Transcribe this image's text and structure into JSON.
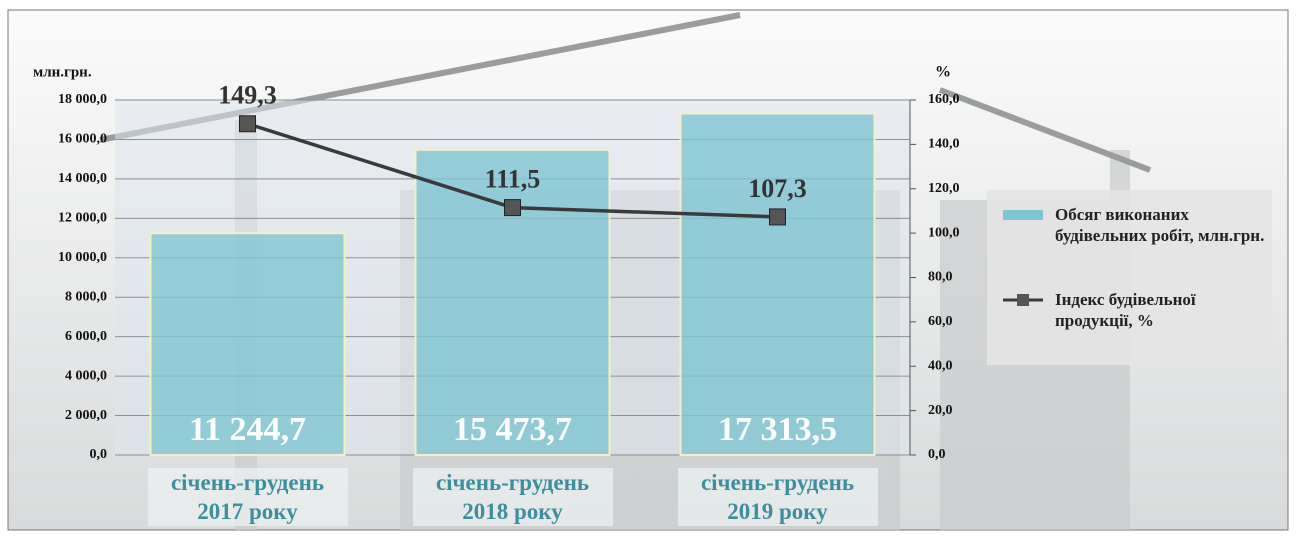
{
  "chart_data": {
    "type": "bar-line",
    "y_axis_label": "млн.грн.",
    "y2_axis_label": "%",
    "categories": [
      "січень-грудень\n2017 року",
      "січень-грудень\n2018 року",
      "січень-грудень\n2019 року"
    ],
    "series": [
      {
        "name": "Обсяг виконаних будівельних робіт, млн.грн.",
        "type": "bar",
        "color": "#7fc6d2",
        "values": [
          11244.7,
          15473.7,
          17313.5
        ],
        "value_labels": [
          "11 244,7",
          "15 473,7",
          "17 313,5"
        ]
      },
      {
        "name": "Індекс будівельної продукції, %",
        "type": "line",
        "axis": "y2",
        "color": "#3a3a3a",
        "values": [
          149.3,
          111.5,
          107.3
        ],
        "value_labels": [
          "149,3",
          "111,5",
          "107,3"
        ]
      }
    ],
    "ylim": [
      0,
      18000
    ],
    "yticks": [
      {
        "value": 0,
        "label": "0,0"
      },
      {
        "value": 2000,
        "label": "2 000,0"
      },
      {
        "value": 4000,
        "label": "4 000,0"
      },
      {
        "value": 6000,
        "label": "6 000,0"
      },
      {
        "value": 8000,
        "label": "8 000,0"
      },
      {
        "value": 10000,
        "label": "10 000,0"
      },
      {
        "value": 12000,
        "label": "12 000,0"
      },
      {
        "value": 14000,
        "label": "14 000,0"
      },
      {
        "value": 16000,
        "label": "16 000,0"
      },
      {
        "value": 18000,
        "label": "18 000,0"
      }
    ],
    "y2lim": [
      0,
      160
    ],
    "y2ticks": [
      {
        "value": 0,
        "label": "0,0"
      },
      {
        "value": 20,
        "label": "20,0"
      },
      {
        "value": 40,
        "label": "40,0"
      },
      {
        "value": 60,
        "label": "60,0"
      },
      {
        "value": 80,
        "label": "80,0"
      },
      {
        "value": 100,
        "label": "100,0"
      },
      {
        "value": 120,
        "label": "120,0"
      },
      {
        "value": 140,
        "label": "140,0"
      },
      {
        "value": 160,
        "label": "160,0"
      }
    ],
    "grid": true,
    "legend": "right"
  }
}
